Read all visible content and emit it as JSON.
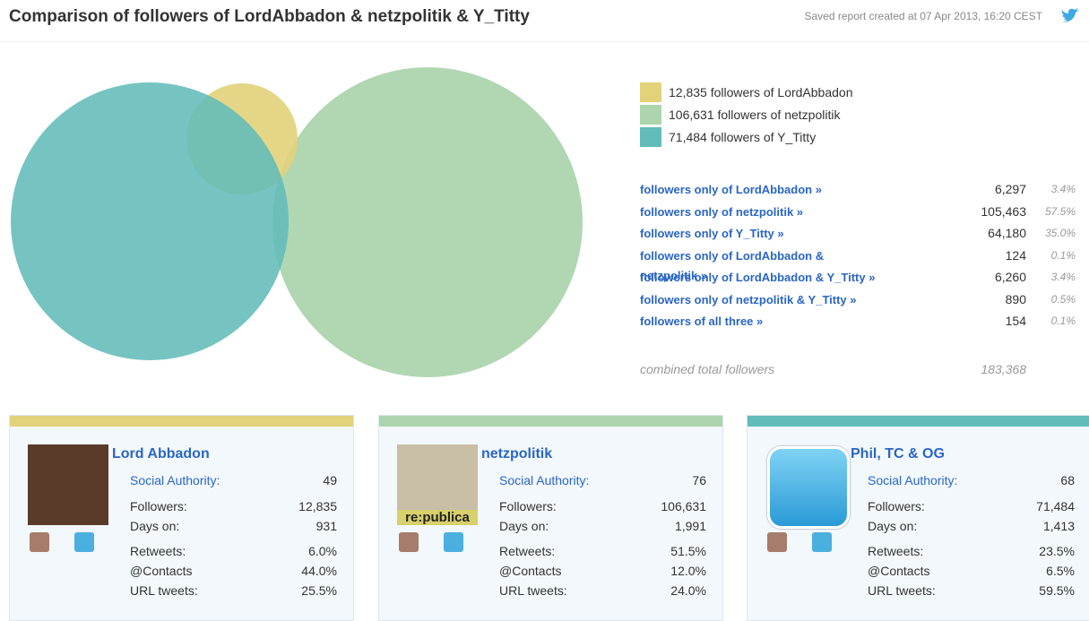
{
  "header": {
    "title": "Comparison of followers of LordAbbadon & netzpolitik & Y_Titty",
    "saved_text": "Saved report created at 07 Apr 2013, 16:20 CEST"
  },
  "legend": [
    {
      "label": "12,835 followers of LordAbbadon",
      "color": "#e2d27a"
    },
    {
      "label": "106,631 followers of netzpolitik",
      "color": "#acd5ad"
    },
    {
      "label": "71,484 followers of Y_Titty",
      "color": "#62bcba"
    }
  ],
  "stats": [
    {
      "label": "followers only of LordAbbadon »",
      "count": "6,297",
      "pct": "3.4%"
    },
    {
      "label": "followers only of netzpolitik »",
      "count": "105,463",
      "pct": "57.5%"
    },
    {
      "label": "followers only of Y_Titty »",
      "count": "64,180",
      "pct": "35.0%"
    },
    {
      "label": "followers only of LordAbbadon & netzpolitik »",
      "count": "124",
      "pct": "0.1%"
    },
    {
      "label": "followers only of LordAbbadon & Y_Titty »",
      "count": "6,260",
      "pct": "3.4%"
    },
    {
      "label": "followers only of netzpolitik & Y_Titty »",
      "count": "890",
      "pct": "0.5%"
    },
    {
      "label": "followers of all three »",
      "count": "154",
      "pct": "0.1%"
    }
  ],
  "total": {
    "label": "combined total followers",
    "count": "183,368"
  },
  "cards": [
    {
      "name": "Lord Abbadon",
      "color": "#e2d27a",
      "rows": [
        [
          "Social Authority:",
          "49"
        ],
        [
          "Followers:",
          "12,835"
        ],
        [
          "Days on:",
          "931"
        ],
        [
          "Retweets:",
          "6.0%"
        ],
        [
          "@Contacts",
          "44.0%"
        ],
        [
          "URL tweets:",
          "25.5%"
        ]
      ]
    },
    {
      "name": "netzpolitik",
      "color": "#acd5ad",
      "avatar_text": "re:publica",
      "rows": [
        [
          "Social Authority:",
          "76"
        ],
        [
          "Followers:",
          "106,631"
        ],
        [
          "Days on:",
          "1,991"
        ],
        [
          "Retweets:",
          "51.5%"
        ],
        [
          "@Contacts",
          "12.0%"
        ],
        [
          "URL tweets:",
          "24.0%"
        ]
      ]
    },
    {
      "name": "Phil, TC & OG",
      "color": "#62bcba",
      "rows": [
        [
          "Social Authority:",
          "68"
        ],
        [
          "Followers:",
          "71,484"
        ],
        [
          "Days on:",
          "1,413"
        ],
        [
          "Retweets:",
          "23.5%"
        ],
        [
          "@Contacts",
          "6.5%"
        ],
        [
          "URL tweets:",
          "59.5%"
        ]
      ]
    }
  ]
}
